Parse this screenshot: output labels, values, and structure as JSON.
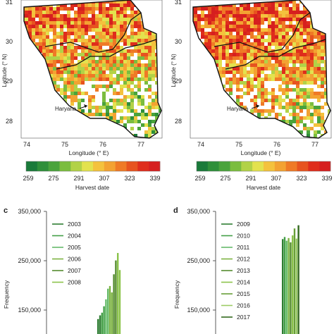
{
  "colors": {
    "scale": [
      "#1a7a3a",
      "#2f8f3a",
      "#4aa33c",
      "#7bbd3f",
      "#b2d247",
      "#e3e24e",
      "#f4c23d",
      "#f3a232",
      "#ef7a26",
      "#e7531f",
      "#df2d1c",
      "#d61f1f"
    ],
    "bar_shades": [
      "#2e7d32",
      "#43a047",
      "#66bb6a",
      "#7cb342",
      "#558b2f",
      "#8bc34a",
      "#689f38",
      "#9ccc65",
      "#33691e"
    ]
  },
  "maps": [
    {
      "ylabel": "Latitude (° N)",
      "xlabel": "Longitude (° E)",
      "y_ticks": [
        "31",
        "30",
        "29",
        "28"
      ],
      "x_ticks": [
        "74",
        "75",
        "76",
        "77"
      ],
      "annotation": "Haryana",
      "colorbar_ticks": [
        "259",
        "275",
        "291",
        "307",
        "323",
        "339"
      ],
      "colorbar_label": "Harvest date"
    },
    {
      "ylabel": "Latitude (° N)",
      "xlabel": "Longitude (° E)",
      "y_ticks": [
        "31",
        "30",
        "29",
        "28"
      ],
      "x_ticks": [
        "74",
        "75",
        "76",
        "77"
      ],
      "annotation": "Haryana",
      "colorbar_ticks": [
        "259",
        "275",
        "291",
        "307",
        "323",
        "339"
      ],
      "colorbar_label": "Harvest date"
    }
  ],
  "chart_data": [
    {
      "type": "bar",
      "panel": "c",
      "ylabel": "Frequency",
      "y_ticks": [
        "350,000",
        "250,000",
        "150,000"
      ],
      "ylim": [
        120000,
        350000
      ],
      "legend_placement": "top-left",
      "series": [
        {
          "name": "2003",
          "values": [
            148000,
            155000
          ]
        },
        {
          "name": "2004",
          "values": [
            160000,
            172000
          ]
        },
        {
          "name": "2005",
          "values": [
            185000,
            205000
          ]
        },
        {
          "name": "2006",
          "values": [
            210000,
            198000
          ]
        },
        {
          "name": "2007",
          "values": [
            232000,
            258000
          ]
        },
        {
          "name": "2008",
          "values": [
            272000,
            240000
          ]
        }
      ]
    },
    {
      "type": "bar",
      "panel": "d",
      "ylabel": "Frequency",
      "y_ticks": [
        "350,000",
        "250,000",
        "150,000"
      ],
      "ylim": [
        120000,
        350000
      ],
      "legend_placement": "top-left",
      "series": [
        {
          "name": "2009",
          "values": [
            298000
          ]
        },
        {
          "name": "2010",
          "values": [
            302000
          ]
        },
        {
          "name": "2011",
          "values": [
            295000
          ]
        },
        {
          "name": "2012",
          "values": [
            300000
          ]
        },
        {
          "name": "2013",
          "values": [
            292000
          ]
        },
        {
          "name": "2014",
          "values": [
            305000
          ]
        },
        {
          "name": "2015",
          "values": [
            318000
          ]
        },
        {
          "name": "2016",
          "values": [
            299000
          ]
        },
        {
          "name": "2017",
          "values": [
            324000
          ]
        }
      ]
    }
  ],
  "panel_letters": [
    "c",
    "d"
  ]
}
